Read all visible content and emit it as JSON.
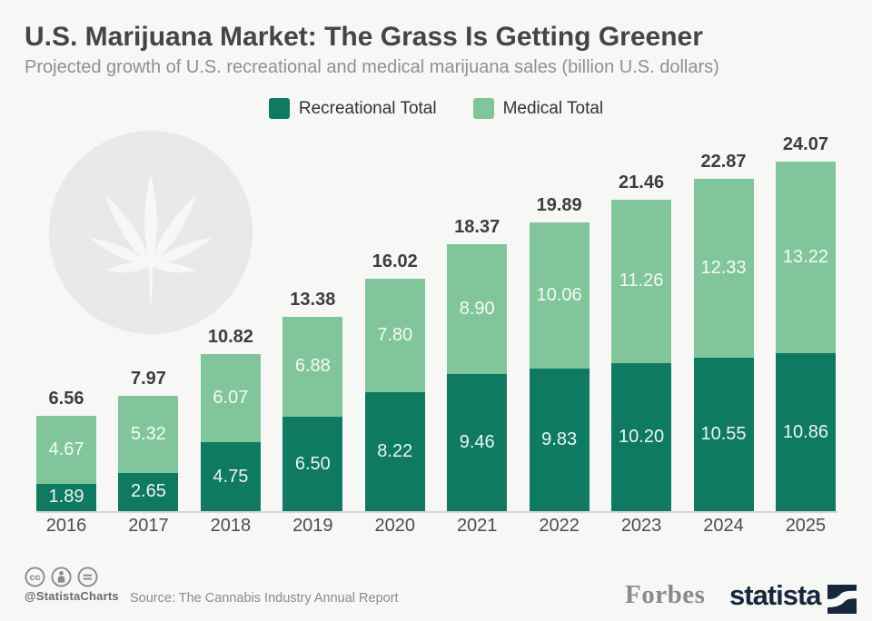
{
  "header": {
    "title": "U.S. Marijuana Market: The Grass Is Getting Greener",
    "subtitle": "Projected growth of U.S. recreational and medical marijuana sales (billion U.S. dollars)"
  },
  "legend": {
    "items": [
      {
        "label": "Recreational Total",
        "color": "#0d7a61"
      },
      {
        "label": "Medical Total",
        "color": "#81c69b"
      }
    ]
  },
  "chart_data": {
    "type": "bar",
    "stacked": true,
    "title": "U.S. Marijuana Market: The Grass Is Getting Greener",
    "subtitle": "Projected growth of U.S. recreational and medical marijuana sales (billion U.S. dollars)",
    "unit": "billion U.S. dollars",
    "legend_position": "top",
    "grid": false,
    "ylim": [
      0,
      26
    ],
    "categories": [
      "2016",
      "2017",
      "2018",
      "2019",
      "2020",
      "2021",
      "2022",
      "2023",
      "2024",
      "2025"
    ],
    "series": [
      {
        "name": "Recreational Total",
        "color": "#0d7a61",
        "values": [
          1.89,
          2.65,
          4.75,
          6.5,
          8.22,
          9.46,
          9.83,
          10.2,
          10.55,
          10.86
        ]
      },
      {
        "name": "Medical Total",
        "color": "#81c69b",
        "values": [
          4.67,
          5.32,
          6.07,
          6.88,
          7.8,
          8.9,
          10.06,
          11.26,
          12.33,
          13.22
        ]
      }
    ],
    "totals": [
      6.56,
      7.97,
      10.82,
      13.38,
      16.02,
      18.37,
      19.89,
      21.46,
      22.87,
      24.07
    ]
  },
  "footer": {
    "license_icons": [
      "cc-icon",
      "attribution-icon",
      "no-derivatives-icon"
    ],
    "handle": "@StatistaCharts",
    "source": "Source: The Cannabis Industry Annual Report",
    "partner_logo": "Forbes",
    "brand_logo": "statista"
  },
  "colors": {
    "background": "#f7f7f5",
    "recreational": "#0d7a61",
    "medical": "#81c69b",
    "title_text": "#454545",
    "subtitle_text": "#909090",
    "total_label": "#3d3d3d",
    "year_label": "#4d4d4d",
    "axis_line": "#d6d6d4",
    "watermark_circle": "#e9e9e7",
    "statista_navy": "#16263c",
    "forbes_gray": "#8a8a8a"
  }
}
